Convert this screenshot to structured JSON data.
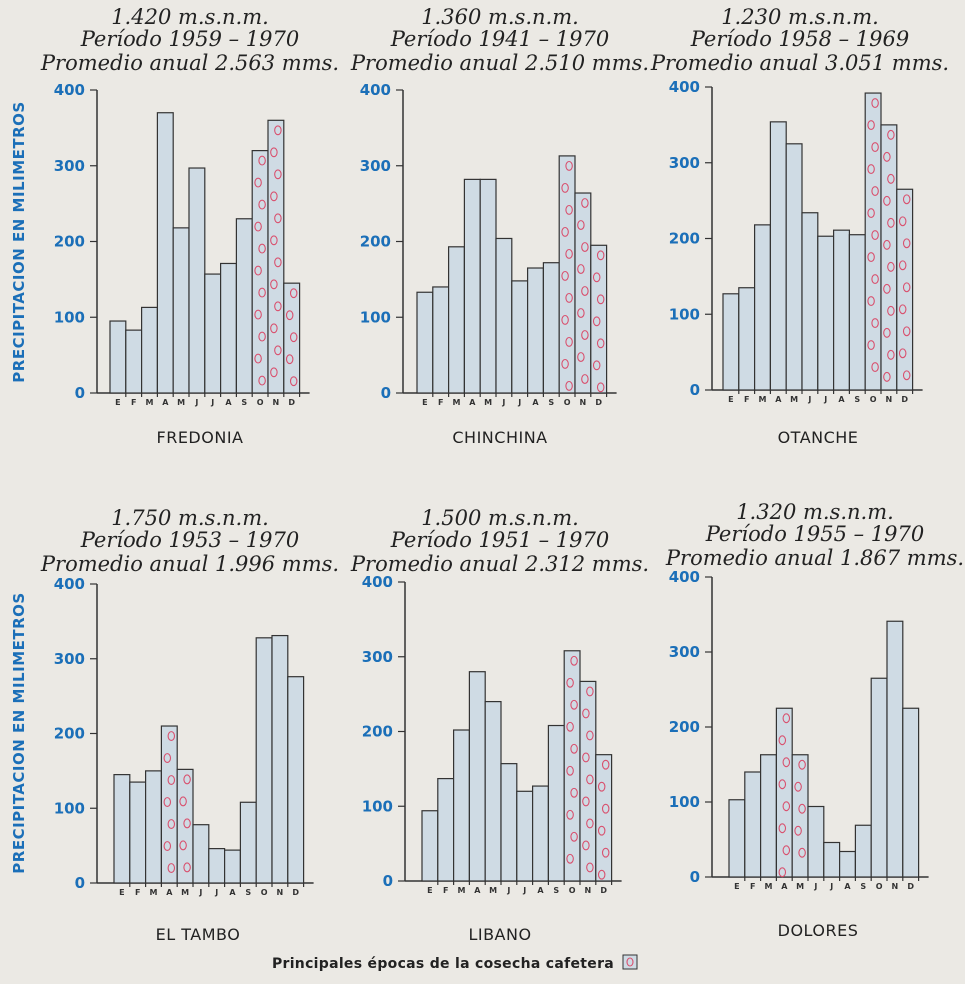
{
  "chart_data": [
    {
      "type": "bar",
      "header_lines": [
        "1.420 m.s.n.m.",
        "Período 1959 – 1970",
        "Promedio anual 2.563 mms."
      ],
      "station": "FREDONIA",
      "ylabel": "PRECIPITACION EN MILIMETROS",
      "ylim": [
        0,
        400
      ],
      "yticks": [
        "0",
        "100",
        "200",
        "300",
        "400"
      ],
      "categories": [
        "E",
        "F",
        "M",
        "A",
        "M",
        "J",
        "J",
        "A",
        "S",
        "O",
        "N",
        "D"
      ],
      "values": [
        95,
        83,
        113,
        370,
        218,
        297,
        157,
        171,
        230,
        320,
        360,
        145
      ],
      "harvest_months": [
        9,
        10,
        11
      ]
    },
    {
      "type": "bar",
      "header_lines": [
        "1.360 m.s.n.m.",
        "Período 1941 – 1970",
        "Promedio anual 2.510 mms."
      ],
      "station": "CHINCHINA",
      "ylim": [
        0,
        400
      ],
      "yticks": [
        "0",
        "100",
        "200",
        "300",
        "400"
      ],
      "categories": [
        "E",
        "F",
        "M",
        "A",
        "M",
        "J",
        "J",
        "A",
        "S",
        "O",
        "N",
        "D"
      ],
      "values": [
        133,
        140,
        193,
        282,
        282,
        204,
        148,
        165,
        172,
        313,
        264,
        195
      ],
      "harvest_months": [
        9,
        10,
        11
      ]
    },
    {
      "type": "bar",
      "header_lines": [
        "1.230 m.s.n.m.",
        "Período 1958 – 1969",
        "Promedio anual 3.051 mms."
      ],
      "station": "OTANCHE",
      "ylim": [
        0,
        400
      ],
      "yticks": [
        "0",
        "100",
        "200",
        "300",
        "400"
      ],
      "categories": [
        "E",
        "F",
        "M",
        "A",
        "M",
        "J",
        "J",
        "A",
        "S",
        "O",
        "N",
        "D"
      ],
      "values": [
        127,
        135,
        218,
        354,
        325,
        234,
        203,
        211,
        205,
        392,
        350,
        265
      ],
      "harvest_months": [
        9,
        10,
        11
      ]
    },
    {
      "type": "bar",
      "header_lines": [
        "1.750 m.s.n.m.",
        "Período 1953 – 1970",
        "Promedio anual 1.996 mms."
      ],
      "station": "EL TAMBO",
      "ylabel": "PRECIPITACION EN MILIMETROS",
      "ylim": [
        0,
        400
      ],
      "yticks": [
        "0",
        "100",
        "200",
        "300",
        "400"
      ],
      "categories": [
        "E",
        "F",
        "M",
        "A",
        "M",
        "J",
        "J",
        "A",
        "S",
        "O",
        "N",
        "D"
      ],
      "values": [
        145,
        135,
        150,
        210,
        152,
        78,
        46,
        44,
        108,
        328,
        331,
        276
      ],
      "harvest_months": [
        3,
        4
      ]
    },
    {
      "type": "bar",
      "header_lines": [
        "1.500 m.s.n.m.",
        "Período 1951 – 1970",
        "Promedio anual 2.312 mms."
      ],
      "station": "LIBANO",
      "ylim": [
        0,
        400
      ],
      "yticks": [
        "0",
        "100",
        "200",
        "300",
        "400"
      ],
      "categories": [
        "E",
        "F",
        "M",
        "A",
        "M",
        "J",
        "J",
        "A",
        "S",
        "O",
        "N",
        "D"
      ],
      "values": [
        94,
        137,
        202,
        280,
        240,
        157,
        120,
        127,
        208,
        308,
        267,
        169
      ],
      "harvest_months": [
        9,
        10,
        11
      ]
    },
    {
      "type": "bar",
      "header_lines": [
        "1.320 m.s.n.m.",
        "Período 1955 – 1970",
        "Promedio anual 1.867 mms."
      ],
      "station": "DOLORES",
      "ylim": [
        0,
        400
      ],
      "yticks": [
        "0",
        "100",
        "200",
        "300",
        "400"
      ],
      "categories": [
        "E",
        "F",
        "M",
        "A",
        "M",
        "J",
        "J",
        "A",
        "S",
        "O",
        "N",
        "D"
      ],
      "values": [
        103,
        140,
        163,
        225,
        163,
        94,
        46,
        34,
        69,
        265,
        341,
        225
      ],
      "harvest_months": [
        3,
        4
      ]
    }
  ],
  "legend": {
    "label": "Principales épocas de la cosecha cafetera",
    "hatch_color": "#d9506e"
  },
  "colors": {
    "bar": "#cfdbe4",
    "axis_text": "#1b6fb8",
    "background": "#ebe9e4"
  }
}
